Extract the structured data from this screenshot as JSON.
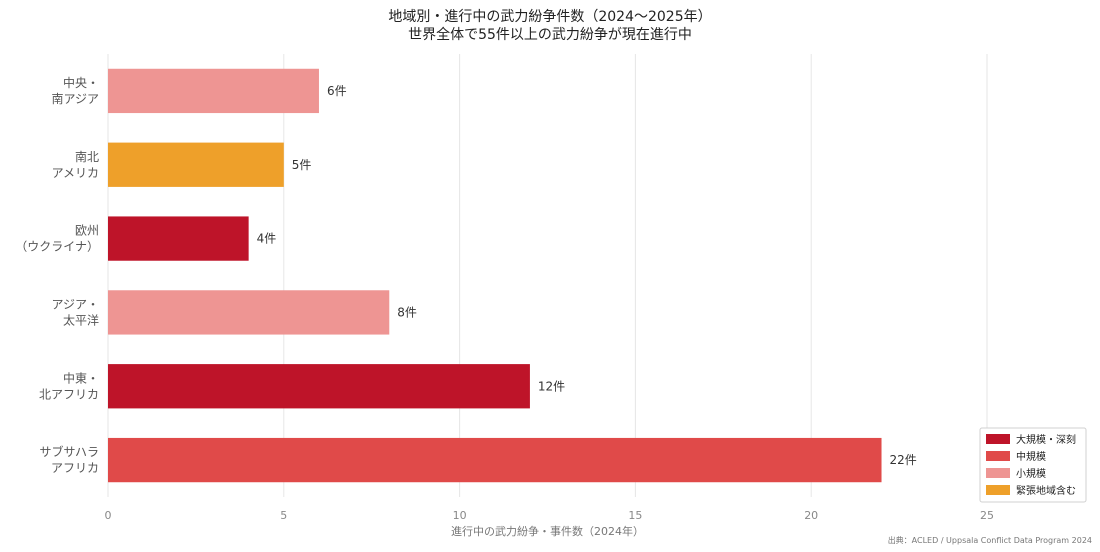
{
  "title": "地域別・進行中の武力紛争件数（2024〜2025年）",
  "subtitle": "世界全体で55件以上の武力紛争が現在進行中",
  "source": "出典：ACLED / Uppsala Conflict Data Program 2024",
  "chart_data": {
    "type": "bar",
    "orientation": "horizontal",
    "categories": [
      "中央・\n南アジア",
      "南北\nアメリカ",
      "欧州\n（ウクライナ）",
      "アジア・\n太平洋",
      "中東・\n北アフリカ",
      "サブサハラ\nアフリカ"
    ],
    "values": [
      6,
      5,
      4,
      8,
      12,
      22
    ],
    "value_labels": [
      "6件",
      "5件",
      "4件",
      "8件",
      "12件",
      "22件"
    ],
    "bar_classes": [
      "小規模",
      "緊張地域含む",
      "大規模・深刻",
      "小規模",
      "大規模・深刻",
      "中規模"
    ],
    "xlabel": "進行中の武力紛争・事件数（2024年）",
    "ylabel": "",
    "xlim": [
      0,
      25
    ],
    "xticks": [
      0,
      5,
      10,
      15,
      20,
      25
    ],
    "grid": true,
    "legend_position": "bottom-right",
    "legend": [
      {
        "label": "大規模・深刻",
        "color": "#be1429"
      },
      {
        "label": "中規模",
        "color": "#e04a49"
      },
      {
        "label": "小規模",
        "color": "#ee9593"
      },
      {
        "label": "緊張地域含む",
        "color": "#eea02a"
      }
    ]
  }
}
